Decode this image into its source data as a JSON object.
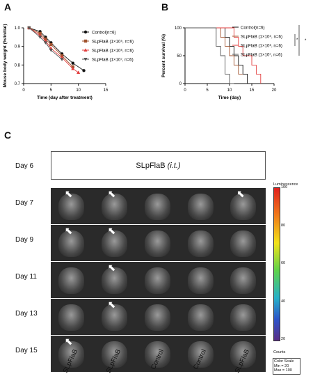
{
  "panels": {
    "a": "A",
    "b": "B",
    "c": "C"
  },
  "chart_data": [
    {
      "type": "line",
      "ylabel": "Mouse body weight (%/initial)",
      "xlabel": "Time (day after treatment)",
      "xlim": [
        0,
        15
      ],
      "ylim": [
        0.7,
        1.0
      ],
      "xticks": [
        "0",
        "5",
        "10",
        "15"
      ],
      "yticks": [
        "0.7",
        "0.8",
        "0.9",
        "1.0"
      ],
      "legend_position": "right",
      "series": [
        {
          "name": "Control(n=6)",
          "color": "#111111",
          "marker": "circle",
          "x": [
            1,
            3,
            4,
            5,
            7,
            9,
            11
          ],
          "y": [
            1.0,
            0.98,
            0.95,
            0.92,
            0.86,
            0.81,
            0.77
          ]
        },
        {
          "name": "SLpFlaB (1×10⁵, n=6)",
          "color": "#a0522d",
          "marker": "square",
          "x": [
            1,
            3,
            4,
            5,
            7,
            9
          ],
          "y": [
            1.0,
            0.97,
            0.94,
            0.91,
            0.85,
            0.79
          ]
        },
        {
          "name": "SLpFlaB (1×10⁶, n=6)",
          "color": "#e23b3b",
          "marker": "triangle",
          "x": [
            1,
            3,
            4,
            5,
            7,
            9,
            10
          ],
          "y": [
            1.0,
            0.96,
            0.93,
            0.89,
            0.84,
            0.78,
            0.76
          ]
        },
        {
          "name": "SLpFlaB (1×10⁷, n=6)",
          "color": "#555555",
          "marker": "triangle-down",
          "x": [
            1,
            3,
            4,
            5,
            7
          ],
          "y": [
            1.0,
            0.95,
            0.92,
            0.88,
            0.83
          ]
        }
      ]
    },
    {
      "type": "line",
      "ylabel": "Percent survival (%)",
      "xlabel": "Time (day)",
      "xlim": [
        0,
        20
      ],
      "ylim": [
        0,
        100
      ],
      "xticks": [
        "0",
        "5",
        "10",
        "15",
        "20"
      ],
      "yticks": [
        "0",
        "50",
        "100"
      ],
      "legend_position": "right",
      "significance": [
        "*",
        "*"
      ],
      "series": [
        {
          "name": "Control(n=6)",
          "color": "#111111",
          "x": [
            0,
            9,
            9,
            10,
            10,
            11,
            11,
            12,
            12,
            13,
            13,
            14,
            14,
            15,
            15
          ],
          "y": [
            100,
            100,
            83,
            83,
            67,
            67,
            50,
            50,
            33,
            33,
            17,
            17,
            0,
            0,
            0
          ]
        },
        {
          "name": "SLpFlaB (1×10⁵, n=6)",
          "color": "#a0522d",
          "x": [
            0,
            8,
            8,
            9,
            9,
            10,
            10,
            11,
            11,
            12,
            12,
            13
          ],
          "y": [
            100,
            100,
            83,
            83,
            67,
            67,
            50,
            50,
            33,
            33,
            17,
            17
          ]
        },
        {
          "name": "SLpFlaB (1×10⁶, n=6)",
          "color": "#e23b3b",
          "x": [
            0,
            11,
            11,
            12,
            12,
            13,
            13,
            15,
            15,
            16,
            16,
            17,
            17
          ],
          "y": [
            100,
            100,
            83,
            83,
            67,
            67,
            50,
            50,
            33,
            33,
            17,
            17,
            0
          ]
        },
        {
          "name": "SLpFlaB (1×10⁷, n=6)",
          "color": "#555555",
          "x": [
            0,
            7,
            7,
            8,
            8,
            9,
            9,
            10,
            10,
            11
          ],
          "y": [
            100,
            100,
            67,
            67,
            50,
            50,
            17,
            17,
            0,
            0
          ]
        }
      ]
    }
  ],
  "imaging": {
    "treatment_label": "SLpFlaB",
    "treatment_suffix": "(i.t.)",
    "days": [
      {
        "label": "Day 6"
      },
      {
        "label": "Day 7",
        "arrows": [
          0,
          1,
          4
        ]
      },
      {
        "label": "Day 9",
        "arrows": [
          0,
          1
        ]
      },
      {
        "label": "Day 11",
        "arrows": [
          1
        ]
      },
      {
        "label": "Day 13",
        "arrows": [
          1
        ]
      },
      {
        "label": "Day 15",
        "arrows": [
          0
        ]
      }
    ],
    "columns": [
      "SLpFlaB",
      "SLpFlaB",
      "Control",
      "Control",
      "SLpFlaB"
    ],
    "colorbar": {
      "title": "Luminescence",
      "ticks": [
        "100",
        "80",
        "60",
        "40",
        "20"
      ],
      "unit": "Counts",
      "scale_title": "Color Scale",
      "scale_min": "Min = 20",
      "scale_max": "Max = 100"
    }
  }
}
